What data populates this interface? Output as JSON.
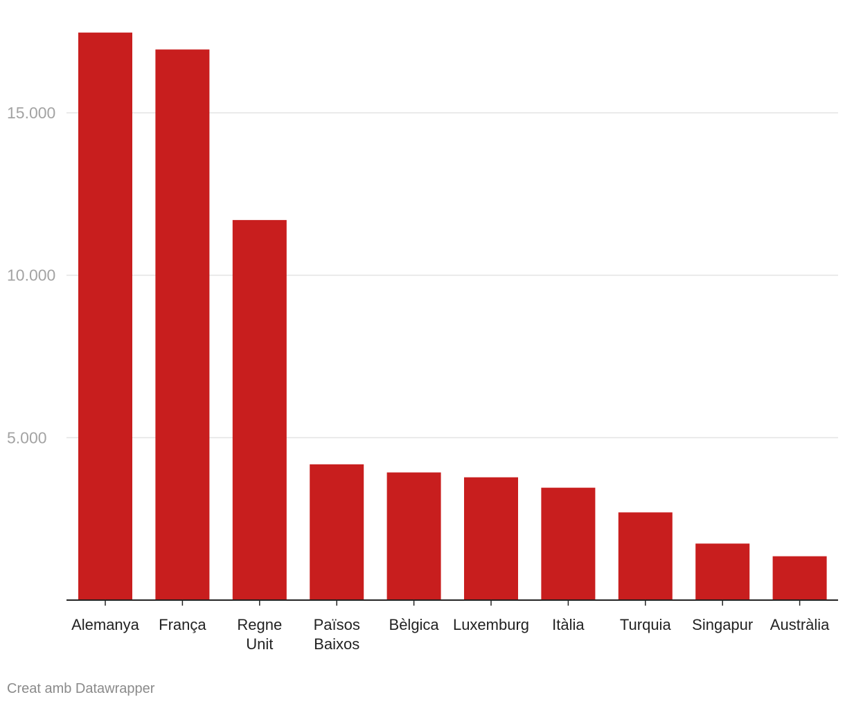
{
  "chart_data": {
    "type": "bar",
    "title": "",
    "xlabel": "",
    "ylabel": "",
    "categories": [
      [
        "Alemanya"
      ],
      [
        "França"
      ],
      [
        "Regne",
        "Unit"
      ],
      [
        "Països",
        "Baixos"
      ],
      [
        "Bèlgica"
      ],
      [
        "Luxemburg"
      ],
      [
        "Itàlia"
      ],
      [
        "Turquia"
      ],
      [
        "Singapur"
      ],
      [
        "Austràlia"
      ]
    ],
    "values": [
      17470,
      16950,
      11700,
      4180,
      3930,
      3780,
      3460,
      2700,
      1740,
      1350
    ],
    "ylim": [
      0,
      17500
    ],
    "yticks": [
      {
        "value": 5000,
        "label": "5.000"
      },
      {
        "value": 10000,
        "label": "10.000"
      },
      {
        "value": 15000,
        "label": "15.000"
      }
    ],
    "grid": true,
    "bar_color": "#c81e1e"
  },
  "footer": {
    "credit": "Creat amb Datawrapper"
  }
}
